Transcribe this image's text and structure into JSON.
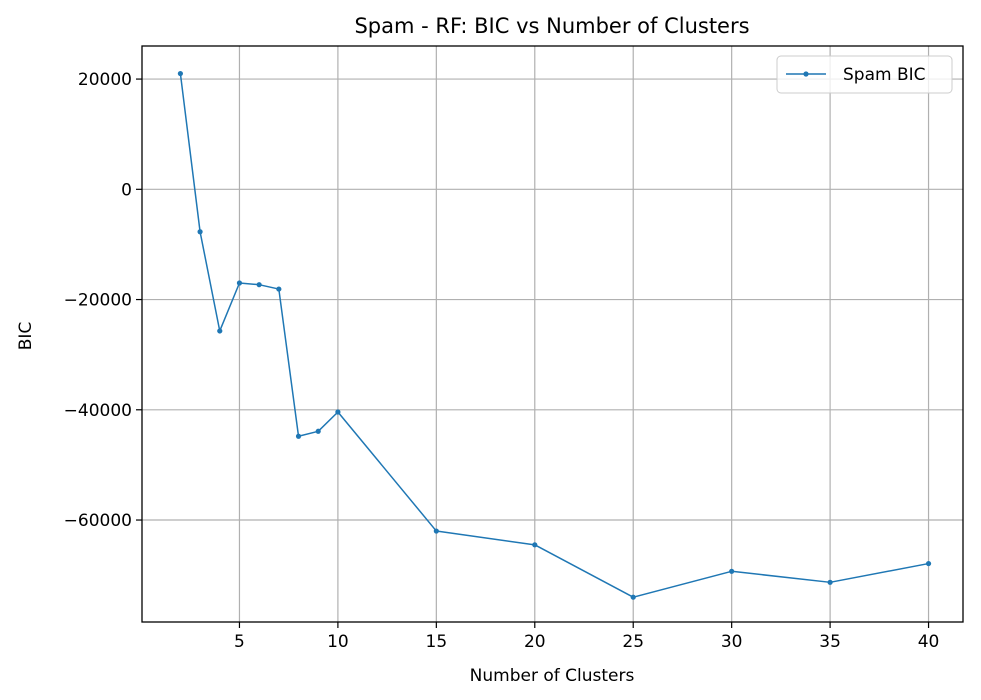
{
  "chart_data": {
    "type": "line",
    "title": "Spam - RF: BIC vs Number of Clusters",
    "xlabel": "Number of Clusters",
    "ylabel": "BIC",
    "xlim": [
      0.05,
      41.75
    ],
    "ylim": [
      -78500,
      26000
    ],
    "xticks": [
      5,
      10,
      15,
      20,
      25,
      30,
      35,
      40
    ],
    "yticks": [
      20000,
      0,
      -20000,
      -40000,
      -60000
    ],
    "ytick_labels": [
      "20000",
      "0",
      "−20000",
      "−40000",
      "−60000"
    ],
    "grid": true,
    "legend_position": "top-right",
    "series": [
      {
        "name": "Spam BIC",
        "color": "#1f77b4",
        "marker": "circle",
        "x": [
          2,
          3,
          4,
          5,
          6,
          7,
          8,
          9,
          10,
          15,
          20,
          25,
          30,
          35,
          40
        ],
        "y": [
          21000,
          -7700,
          -25700,
          -17000,
          -17300,
          -18100,
          -44800,
          -43900,
          -40400,
          -62000,
          -64500,
          -74000,
          -69300,
          -71300,
          -67900
        ]
      }
    ]
  }
}
